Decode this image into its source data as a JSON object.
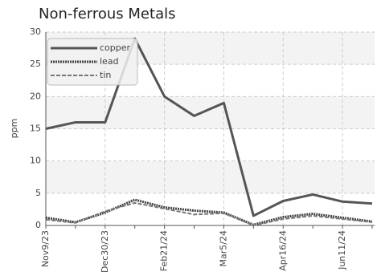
{
  "chart_data": {
    "type": "line",
    "title": "Non-ferrous Metals",
    "y_label": "ppm",
    "categories": [
      "Nov9/23",
      null,
      "Dec30/23",
      null,
      "Feb21/24",
      null,
      "Mar5/24",
      null,
      "Apr16/24",
      null,
      "Jun11/24",
      null
    ],
    "series": [
      {
        "name": "copper",
        "color": "#555555",
        "style": "solid",
        "values": [
          15,
          16,
          16,
          29,
          20,
          17,
          19,
          1.5,
          3.8,
          4.8,
          3.7,
          3.4
        ]
      },
      {
        "name": "lead",
        "color": "#444444",
        "style": "dotted",
        "values": [
          1.2,
          0.5,
          2,
          4,
          2.8,
          2.3,
          2,
          0.1,
          1.3,
          1.8,
          1.2,
          0.6
        ]
      },
      {
        "name": "tin",
        "color": "#777777",
        "style": "dashed",
        "values": [
          0.9,
          0.4,
          2.2,
          3.5,
          2.6,
          1.7,
          1.9,
          0,
          1,
          1.5,
          1,
          0.5
        ]
      }
    ],
    "ylim": [
      0,
      30
    ],
    "yticks": [
      0,
      5,
      10,
      15,
      20,
      25,
      30
    ],
    "grid": true,
    "legend": "top-left"
  }
}
